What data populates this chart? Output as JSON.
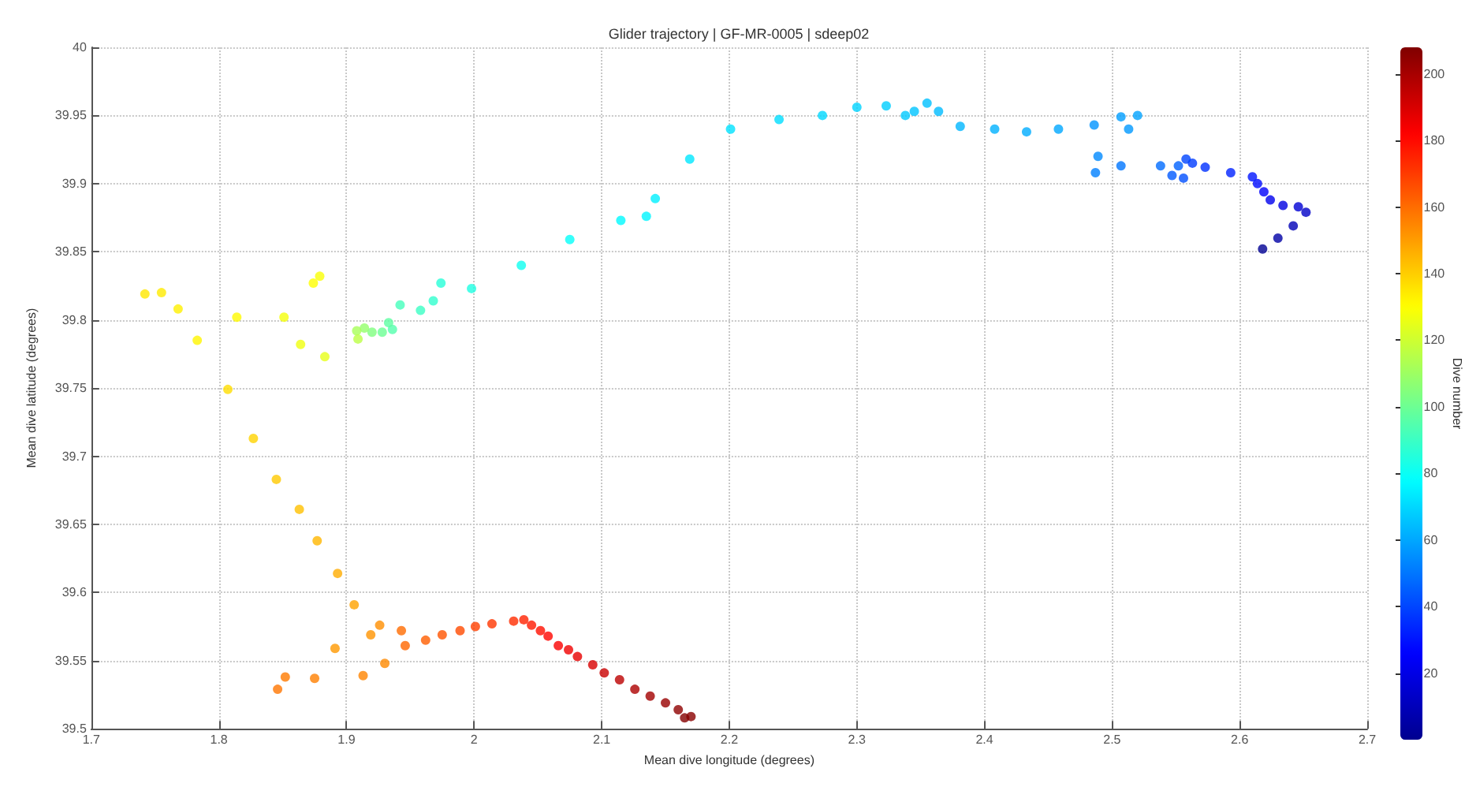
{
  "chart_data": {
    "type": "scatter",
    "title": "Glider trajectory | GF-MR-0005 | sdeep02",
    "xlabel": "Mean dive longitude (degrees)",
    "ylabel": "Mean dive latitude (degrees)",
    "clabel": "Dive number",
    "x": [
      2.618,
      2.63,
      2.642,
      2.652,
      2.646,
      2.634,
      2.624,
      2.619,
      2.614,
      2.61,
      2.593,
      2.573,
      2.563,
      2.558,
      2.556,
      2.547,
      2.552,
      2.538,
      2.507,
      2.487,
      2.489,
      2.486,
      2.513,
      2.507,
      2.52,
      2.458,
      2.433,
      2.408,
      2.381,
      2.364,
      2.355,
      2.345,
      2.338,
      2.323,
      2.3,
      2.273,
      2.239,
      2.201,
      2.169,
      2.142,
      2.135,
      2.115,
      2.075,
      2.037,
      1.998,
      1.974,
      1.968,
      1.958,
      1.942,
      1.936,
      1.933,
      1.928,
      1.92,
      1.914,
      1.908,
      1.909,
      1.883,
      1.864,
      1.851,
      1.879,
      1.874,
      1.814,
      1.783,
      1.768,
      1.755,
      1.742,
      1.807,
      1.827,
      1.845,
      1.863,
      1.877,
      1.893,
      1.906,
      1.891,
      1.919,
      1.926,
      1.93,
      1.913,
      1.875,
      1.852,
      1.846,
      1.943,
      1.946,
      1.962,
      1.975,
      1.989,
      2.001,
      2.014,
      2.031,
      2.039,
      2.045,
      2.052,
      2.058,
      2.066,
      2.074,
      2.081,
      2.093,
      2.102,
      2.114,
      2.126,
      2.138,
      2.15,
      2.16,
      2.17,
      2.165
    ],
    "values": [
      39.852,
      39.86,
      39.869,
      39.879,
      39.883,
      39.884,
      39.888,
      39.894,
      39.9,
      39.905,
      39.908,
      39.912,
      39.915,
      39.918,
      39.904,
      39.906,
      39.913,
      39.913,
      39.913,
      39.908,
      39.92,
      39.943,
      39.94,
      39.949,
      39.95,
      39.94,
      39.938,
      39.94,
      39.942,
      39.953,
      39.959,
      39.953,
      39.95,
      39.957,
      39.956,
      39.95,
      39.947,
      39.94,
      39.918,
      39.889,
      39.876,
      39.873,
      39.859,
      39.84,
      39.823,
      39.827,
      39.814,
      39.807,
      39.811,
      39.793,
      39.798,
      39.791,
      39.791,
      39.794,
      39.792,
      39.786,
      39.773,
      39.782,
      39.802,
      39.832,
      39.827,
      39.802,
      39.785,
      39.808,
      39.82,
      39.819,
      39.749,
      39.713,
      39.683,
      39.661,
      39.638,
      39.614,
      39.591,
      39.559,
      39.569,
      39.576,
      39.548,
      39.539,
      39.537,
      39.538,
      39.529,
      39.572,
      39.561,
      39.565,
      39.569,
      39.572,
      39.575,
      39.577,
      39.579,
      39.58,
      39.576,
      39.572,
      39.568,
      39.561,
      39.558,
      39.553,
      39.547,
      39.541,
      39.536,
      39.529,
      39.524,
      39.519,
      39.514,
      39.509,
      39.508
    ],
    "cvalues": [
      1,
      5,
      9,
      13,
      16,
      19,
      22,
      25,
      28,
      30,
      33,
      36,
      38,
      40,
      42,
      44,
      46,
      48,
      50,
      52,
      54,
      56,
      57,
      58,
      59,
      60,
      61,
      62,
      63,
      64,
      65,
      66,
      67,
      68,
      69,
      70,
      71,
      72,
      73,
      75,
      76,
      77,
      79,
      81,
      84,
      86,
      88,
      90,
      92,
      95,
      97,
      100,
      104,
      108,
      112,
      116,
      125,
      127,
      128,
      129,
      130,
      131,
      132,
      133,
      134,
      135,
      137,
      139,
      141,
      143,
      145,
      147,
      149,
      151,
      152,
      153,
      154,
      155,
      156,
      157,
      158,
      160,
      161,
      163,
      165,
      167,
      169,
      171,
      173,
      175,
      177,
      179,
      181,
      183,
      185,
      187,
      190,
      193,
      196,
      199,
      201,
      203,
      205,
      206,
      207
    ],
    "clim": [
      0,
      208
    ],
    "cticks": [
      20,
      40,
      60,
      80,
      100,
      120,
      140,
      160,
      180,
      200
    ],
    "xlim": [
      1.7,
      2.7
    ],
    "xticks": [
      1.7,
      1.8,
      1.9,
      2,
      2.1,
      2.2,
      2.3,
      2.4,
      2.5,
      2.6,
      2.7
    ],
    "ylim": [
      39.5,
      40
    ],
    "yticks": [
      39.5,
      39.55,
      39.6,
      39.65,
      39.7,
      39.75,
      39.8,
      39.85,
      39.9,
      39.95,
      40
    ],
    "grid": true,
    "marker": "circle"
  }
}
